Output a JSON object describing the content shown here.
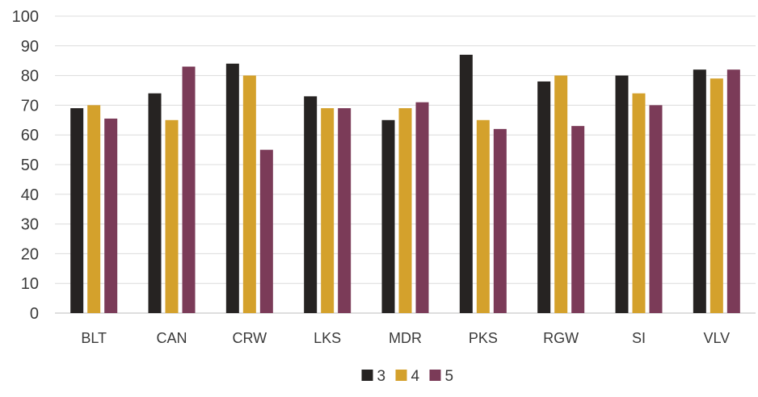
{
  "chart_data": {
    "type": "bar",
    "categories": [
      "BLT",
      "CAN",
      "CRW",
      "LKS",
      "MDR",
      "PKS",
      "RGW",
      "SI",
      "VLV"
    ],
    "series": [
      {
        "name": "3",
        "color": "#262322",
        "values": [
          69,
          74,
          84,
          73,
          65,
          87,
          78,
          80,
          82
        ]
      },
      {
        "name": "4",
        "color": "#d4a12c",
        "values": [
          70,
          65,
          80,
          69,
          69,
          65,
          80,
          74,
          79
        ]
      },
      {
        "name": "5",
        "color": "#7b3b58",
        "values": [
          65.5,
          83,
          55,
          69,
          71,
          62,
          63,
          70,
          82
        ]
      }
    ],
    "ylim": [
      0,
      100
    ],
    "yticks": [
      "0",
      "10",
      "20",
      "30",
      "40",
      "50",
      "60",
      "70",
      "80",
      "90",
      "100"
    ],
    "grid": true,
    "legend_position": "bottom-center",
    "title": "",
    "xlabel": "",
    "ylabel": ""
  }
}
